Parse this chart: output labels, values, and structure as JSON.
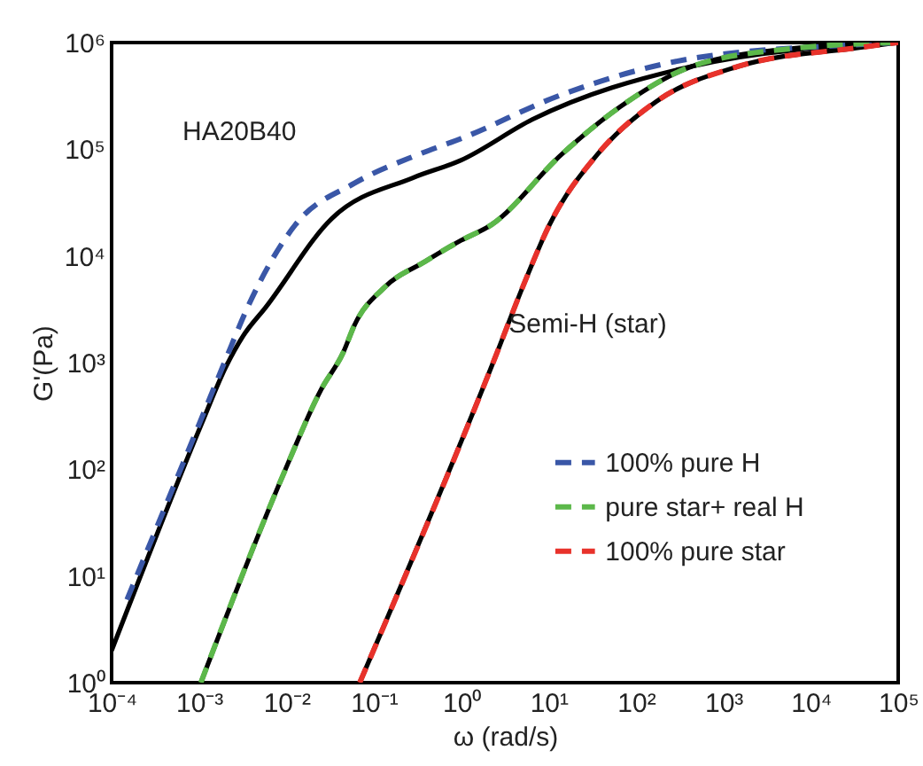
{
  "chart_data": {
    "type": "line",
    "xlabel": "ω (rad/s)",
    "ylabel": "G'(Pa)",
    "log": "xy",
    "xlim": [
      0.0001,
      100000
    ],
    "ylim": [
      1,
      1000000
    ],
    "xticks": [
      {
        "value": 0.0001,
        "label": "10⁻⁴"
      },
      {
        "value": 0.001,
        "label": "10⁻³"
      },
      {
        "value": 0.01,
        "label": "10⁻²"
      },
      {
        "value": 0.1,
        "label": "10⁻¹"
      },
      {
        "value": 1,
        "label": "10⁰"
      },
      {
        "value": 10,
        "label": "10¹"
      },
      {
        "value": 100,
        "label": "10²"
      },
      {
        "value": 1000,
        "label": "10³"
      },
      {
        "value": 10000,
        "label": "10⁴"
      },
      {
        "value": 100000,
        "label": "10⁵"
      }
    ],
    "yticks": [
      {
        "value": 1,
        "label": "10⁰"
      },
      {
        "value": 10,
        "label": "10¹"
      },
      {
        "value": 100,
        "label": "10²"
      },
      {
        "value": 1000,
        "label": "10³"
      },
      {
        "value": 10000,
        "label": "10⁴"
      },
      {
        "value": 100000,
        "label": "10⁵"
      },
      {
        "value": 1000000,
        "label": "10⁶"
      }
    ],
    "grid": false,
    "legend": "right",
    "annotations": [
      "HA20B40",
      {
        "text": "Semi-H (star)",
        "x": 3.5,
        "y": 2300
      }
    ],
    "series": [
      {
        "color": "#000000",
        "line_style": "solid",
        "x": [
          0.0001,
          0.00105,
          0.002,
          0.0032,
          0.0058,
          0.033,
          0.28,
          1,
          6.5,
          440,
          100000
        ],
        "values": [
          2,
          257,
          890,
          1780,
          3300,
          22400,
          54000,
          79000,
          190000,
          600000,
          1000000
        ]
      },
      {
        "color": "#000000",
        "line_style": "solid",
        "x": [
          0.00105,
          0.0093,
          0.025,
          0.045,
          0.06,
          0.13,
          0.39,
          1,
          2.2,
          14,
          66,
          440,
          7100,
          100000
        ],
        "values": [
          1,
          91,
          560,
          1260,
          2240,
          5000,
          8900,
          14000,
          19500,
          89000,
          250000,
          600000,
          890000,
          1000000
        ]
      },
      {
        "color": "#000000",
        "line_style": "solid",
        "x": [
          0.069,
          2.5,
          5,
          10.2,
          36,
          170,
          1500,
          33000,
          100000
        ],
        "values": [
          1,
          1170,
          5000,
          19500,
          89000,
          280000,
          600000,
          890000,
          1000000
        ]
      },
      {
        "name": "100% pure H",
        "color": "#3a57a7",
        "line_style": "dashed",
        "x": [
          0.00015,
          0.00105,
          0.002,
          0.0036,
          0.0126,
          0.06,
          0.32,
          1,
          14,
          440,
          33000,
          100000
        ],
        "values": [
          6,
          290,
          1050,
          3300,
          19500,
          48000,
          89000,
          126000,
          324000,
          710000,
          955000,
          1000000
        ]
      },
      {
        "name": "pure star+ real H",
        "color": "#5cb84a",
        "line_style": "dashed",
        "x": [
          0.00105,
          0.0093,
          0.025,
          0.045,
          0.06,
          0.13,
          0.39,
          1,
          2.2,
          14,
          66,
          440,
          7100,
          100000
        ],
        "values": [
          1,
          91,
          560,
          1260,
          2240,
          5000,
          8900,
          14000,
          19500,
          89000,
          250000,
          600000,
          890000,
          1000000
        ]
      },
      {
        "name": "100% pure star",
        "color": "#e8322b",
        "line_style": "dashed",
        "x": [
          0.069,
          2.5,
          5,
          10.2,
          36,
          170,
          1500,
          33000,
          100000
        ],
        "values": [
          1,
          1170,
          5000,
          19500,
          89000,
          280000,
          600000,
          890000,
          1000000
        ]
      }
    ]
  }
}
